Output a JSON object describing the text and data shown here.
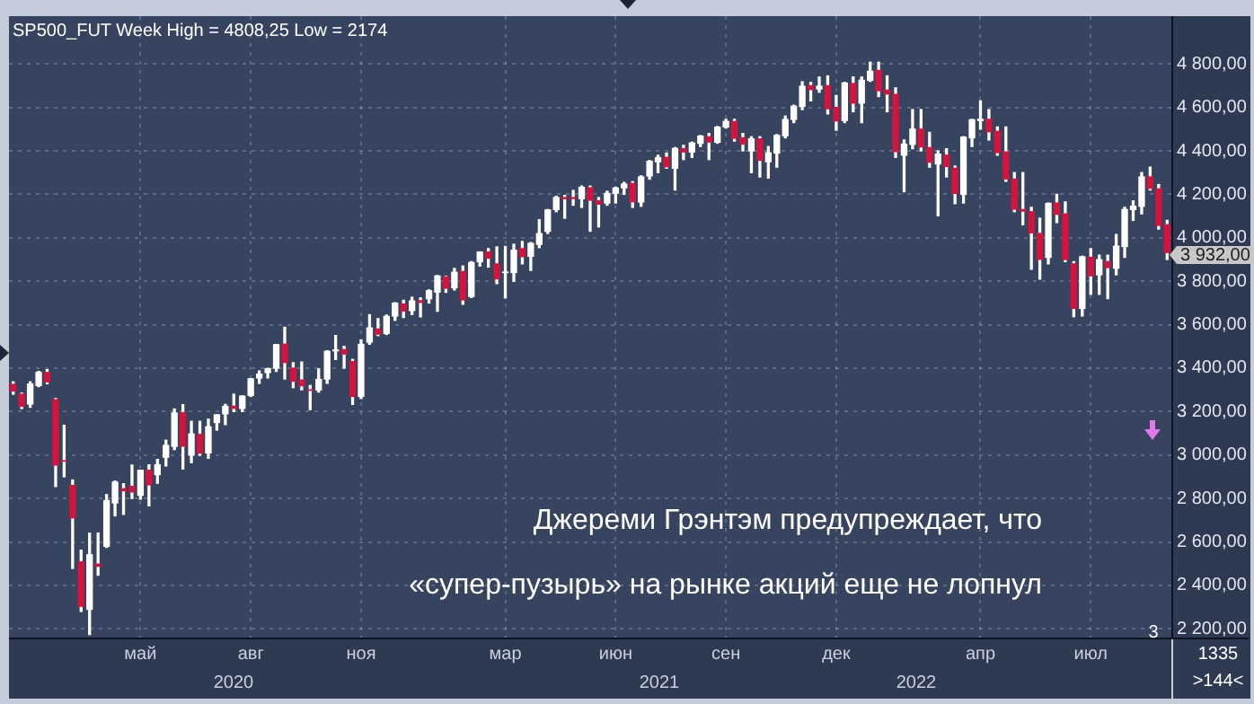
{
  "chart_data": {
    "type": "candlestick",
    "title": "SP500_FUT Week High = 4808,25 Low = 2174",
    "annotations": [
      "Джереми Грэнтэм предупреждает, что",
      "«супер-пузырь» на рынке акций еще не лопнул",
      "3 932,00",
      "2020",
      "2021",
      "2022",
      "3",
      "1335",
      ">144<"
    ],
    "categories": [
      null,
      null,
      null,
      null,
      null,
      null,
      null,
      null,
      null,
      null,
      null,
      null,
      null,
      null,
      null,
      "май",
      null,
      null,
      null,
      null,
      null,
      null,
      null,
      null,
      null,
      null,
      null,
      null,
      "авг",
      null,
      null,
      null,
      null,
      null,
      null,
      null,
      null,
      null,
      null,
      null,
      null,
      "ноя",
      null,
      null,
      null,
      null,
      null,
      null,
      null,
      null,
      null,
      null,
      null,
      null,
      null,
      null,
      null,
      null,
      "мар",
      null,
      null,
      null,
      null,
      null,
      null,
      null,
      null,
      null,
      null,
      null,
      null,
      "июн",
      null,
      null,
      null,
      null,
      null,
      null,
      null,
      null,
      null,
      null,
      null,
      null,
      "сен",
      null,
      null,
      null,
      null,
      null,
      null,
      null,
      null,
      null,
      null,
      null,
      null,
      "дек",
      null,
      null,
      null,
      null,
      null,
      null,
      null,
      null,
      null,
      null,
      null,
      null,
      null,
      null,
      null,
      null,
      "апр",
      null,
      null,
      null,
      null,
      null,
      null,
      null,
      null,
      null,
      null,
      null,
      null,
      "июл",
      null,
      null,
      null,
      null,
      null,
      null,
      null,
      null,
      null
    ],
    "ohlc": [
      [
        3325,
        3337,
        3280,
        3295
      ],
      [
        3280,
        3285,
        3214,
        3225
      ],
      [
        3235,
        3337,
        3220,
        3327
      ],
      [
        3320,
        3385,
        3315,
        3380
      ],
      [
        3380,
        3393,
        3328,
        3337
      ],
      [
        3255,
        3260,
        2855,
        2954
      ],
      [
        2974,
        3137,
        2900,
        2972
      ],
      [
        2860,
        2885,
        2478,
        2711
      ],
      [
        2508,
        2562,
        2280,
        2304
      ],
      [
        2290,
        2640,
        2174,
        2541
      ],
      [
        2498,
        2641,
        2447,
        2488
      ],
      [
        2580,
        2818,
        2575,
        2790
      ],
      [
        2780,
        2880,
        2720,
        2875
      ],
      [
        2845,
        2868,
        2727,
        2836
      ],
      [
        2856,
        2954,
        2800,
        2830
      ],
      [
        2815,
        2930,
        2797,
        2930
      ],
      [
        2930,
        2955,
        2766,
        2863
      ],
      [
        2910,
        2980,
        2870,
        2955
      ],
      [
        2990,
        3068,
        2950,
        3044
      ],
      [
        3040,
        3212,
        3025,
        3193
      ],
      [
        3195,
        3232,
        2936,
        3041
      ],
      [
        3000,
        3155,
        2965,
        3097
      ],
      [
        3095,
        3155,
        2999,
        3009
      ],
      [
        3010,
        3165,
        2985,
        3130
      ],
      [
        3150,
        3185,
        3115,
        3185
      ],
      [
        3190,
        3233,
        3140,
        3224
      ],
      [
        3225,
        3280,
        3200,
        3215
      ],
      [
        3215,
        3272,
        3200,
        3271
      ],
      [
        3275,
        3352,
        3270,
        3351
      ],
      [
        3355,
        3387,
        3330,
        3372
      ],
      [
        3380,
        3399,
        3355,
        3397
      ],
      [
        3400,
        3509,
        3385,
        3508
      ],
      [
        3510,
        3588,
        3350,
        3426
      ],
      [
        3400,
        3425,
        3310,
        3340
      ],
      [
        3345,
        3428,
        3300,
        3319
      ],
      [
        3300,
        3320,
        3209,
        3298
      ],
      [
        3300,
        3397,
        3290,
        3348
      ],
      [
        3350,
        3480,
        3330,
        3477
      ],
      [
        3480,
        3550,
        3440,
        3483
      ],
      [
        3485,
        3500,
        3400,
        3465
      ],
      [
        3430,
        3440,
        3233,
        3270
      ],
      [
        3270,
        3530,
        3260,
        3509
      ],
      [
        3520,
        3646,
        3510,
        3585
      ],
      [
        3580,
        3628,
        3550,
        3557
      ],
      [
        3560,
        3644,
        3555,
        3638
      ],
      [
        3640,
        3701,
        3620,
        3699
      ],
      [
        3695,
        3712,
        3633,
        3663
      ],
      [
        3665,
        3726,
        3647,
        3709
      ],
      [
        3710,
        3723,
        3636,
        3703
      ],
      [
        3720,
        3760,
        3700,
        3756
      ],
      [
        3750,
        3826,
        3662,
        3824
      ],
      [
        3820,
        3823,
        3749,
        3768
      ],
      [
        3770,
        3859,
        3760,
        3841
      ],
      [
        3845,
        3870,
        3694,
        3714
      ],
      [
        3730,
        3890,
        3725,
        3886
      ],
      [
        3890,
        3935,
        3870,
        3934
      ],
      [
        3935,
        3950,
        3865,
        3906
      ],
      [
        3880,
        3958,
        3789,
        3811
      ],
      [
        3840,
        3960,
        3723,
        3842
      ],
      [
        3840,
        3970,
        3800,
        3943
      ],
      [
        3950,
        3983,
        3880,
        3913
      ],
      [
        3915,
        3978,
        3850,
        3974
      ],
      [
        3970,
        4083,
        3955,
        4019
      ],
      [
        4030,
        4130,
        4020,
        4128
      ],
      [
        4130,
        4191,
        4120,
        4185
      ],
      [
        4185,
        4195,
        4090,
        4180
      ],
      [
        4185,
        4218,
        4150,
        4181
      ],
      [
        4180,
        4238,
        4140,
        4232
      ],
      [
        4230,
        4238,
        4030,
        4173
      ],
      [
        4170,
        4185,
        4050,
        4155
      ],
      [
        4160,
        4214,
        4150,
        4204
      ],
      [
        4205,
        4233,
        4160,
        4229
      ],
      [
        4230,
        4255,
        4200,
        4247
      ],
      [
        4250,
        4258,
        4140,
        4166
      ],
      [
        4165,
        4285,
        4145,
        4280
      ],
      [
        4285,
        4355,
        4270,
        4352
      ],
      [
        4350,
        4380,
        4300,
        4369
      ],
      [
        4370,
        4390,
        4320,
        4327
      ],
      [
        4320,
        4415,
        4220,
        4411
      ],
      [
        4410,
        4425,
        4360,
        4395
      ],
      [
        4395,
        4440,
        4370,
        4436
      ],
      [
        4435,
        4470,
        4420,
        4468
      ],
      [
        4465,
        4480,
        4360,
        4441
      ],
      [
        4440,
        4512,
        4435,
        4509
      ],
      [
        4510,
        4545,
        4505,
        4535
      ],
      [
        4535,
        4545,
        4445,
        4458
      ],
      [
        4460,
        4480,
        4400,
        4432
      ],
      [
        4400,
        4465,
        4300,
        4455
      ],
      [
        4455,
        4465,
        4280,
        4357
      ],
      [
        4350,
        4420,
        4275,
        4391
      ],
      [
        4390,
        4475,
        4325,
        4471
      ],
      [
        4470,
        4560,
        4460,
        4544
      ],
      [
        4545,
        4610,
        4530,
        4605
      ],
      [
        4605,
        4718,
        4590,
        4697
      ],
      [
        4700,
        4715,
        4630,
        4682
      ],
      [
        4685,
        4740,
        4670,
        4697
      ],
      [
        4700,
        4745,
        4570,
        4594
      ],
      [
        4600,
        4655,
        4495,
        4538
      ],
      [
        4540,
        4715,
        4530,
        4712
      ],
      [
        4710,
        4740,
        4580,
        4620
      ],
      [
        4620,
        4740,
        4530,
        4725
      ],
      [
        4725,
        4808,
        4720,
        4766
      ],
      [
        4770,
        4808,
        4650,
        4677
      ],
      [
        4680,
        4745,
        4580,
        4662
      ],
      [
        4660,
        4690,
        4370,
        4397
      ],
      [
        4380,
        4450,
        4212,
        4431
      ],
      [
        4430,
        4590,
        4410,
        4500
      ],
      [
        4500,
        4590,
        4400,
        4418
      ],
      [
        4415,
        4485,
        4325,
        4348
      ],
      [
        4340,
        4400,
        4101,
        4385
      ],
      [
        4380,
        4410,
        4280,
        4328
      ],
      [
        4320,
        4330,
        4157,
        4204
      ],
      [
        4200,
        4465,
        4160,
        4463
      ],
      [
        4460,
        4545,
        4420,
        4543
      ],
      [
        4540,
        4630,
        4500,
        4545
      ],
      [
        4545,
        4590,
        4450,
        4488
      ],
      [
        4490,
        4510,
        4380,
        4392
      ],
      [
        4395,
        4510,
        4260,
        4271
      ],
      [
        4270,
        4300,
        4120,
        4132
      ],
      [
        4130,
        4300,
        4060,
        4123
      ],
      [
        4120,
        4140,
        3855,
        4023
      ],
      [
        4020,
        4090,
        3810,
        3901
      ],
      [
        3910,
        4160,
        3880,
        4158
      ],
      [
        4160,
        4200,
        4070,
        4108
      ],
      [
        4110,
        4165,
        3890,
        3900
      ],
      [
        3880,
        3890,
        3637,
        3675
      ],
      [
        3675,
        3915,
        3640,
        3912
      ],
      [
        3910,
        3950,
        3740,
        3825
      ],
      [
        3830,
        3920,
        3740,
        3899
      ],
      [
        3890,
        3920,
        3720,
        3863
      ],
      [
        3860,
        4015,
        3830,
        3961
      ],
      [
        3960,
        4140,
        3910,
        4130
      ],
      [
        4130,
        4170,
        4080,
        4145
      ],
      [
        4145,
        4300,
        4110,
        4280
      ],
      [
        4280,
        4325,
        4220,
        4228
      ],
      [
        4225,
        4245,
        4040,
        4057
      ],
      [
        4060,
        4080,
        3900,
        3932
      ]
    ],
    "colors": [
      "#d4143c",
      "#d4143c",
      "#ffffff",
      "#ffffff",
      "#d4143c",
      "#d4143c",
      "#d4143c",
      "#d4143c",
      "#d4143c",
      "#ffffff",
      "#d4143c",
      "#ffffff",
      "#ffffff",
      "#d4143c",
      "#d4143c",
      "#ffffff",
      "#d4143c",
      "#ffffff",
      "#ffffff",
      "#ffffff",
      "#d4143c",
      "#ffffff",
      "#d4143c",
      "#ffffff",
      "#ffffff",
      "#ffffff",
      "#d4143c",
      "#ffffff",
      "#ffffff",
      "#ffffff",
      "#ffffff",
      "#ffffff",
      "#d4143c",
      "#d4143c",
      "#d4143c",
      "#d4143c",
      "#ffffff",
      "#ffffff",
      "#ffffff",
      "#d4143c",
      "#d4143c",
      "#ffffff",
      "#ffffff",
      "#d4143c",
      "#ffffff",
      "#ffffff",
      "#d4143c",
      "#ffffff",
      "#d4143c",
      "#ffffff",
      "#ffffff",
      "#d4143c",
      "#ffffff",
      "#d4143c",
      "#ffffff",
      "#ffffff",
      "#d4143c",
      "#d4143c",
      "#ffffff",
      "#ffffff",
      "#d4143c",
      "#ffffff",
      "#ffffff",
      "#ffffff",
      "#ffffff",
      "#d4143c",
      "#d4143c",
      "#ffffff",
      "#d4143c",
      "#d4143c",
      "#ffffff",
      "#ffffff",
      "#ffffff",
      "#d4143c",
      "#ffffff",
      "#ffffff",
      "#ffffff",
      "#d4143c",
      "#ffffff",
      "#d4143c",
      "#ffffff",
      "#ffffff",
      "#d4143c",
      "#ffffff",
      "#ffffff",
      "#d4143c",
      "#d4143c",
      "#ffffff",
      "#d4143c",
      "#ffffff",
      "#ffffff",
      "#ffffff",
      "#ffffff",
      "#ffffff",
      "#d4143c",
      "#ffffff",
      "#d4143c",
      "#d4143c",
      "#ffffff",
      "#d4143c",
      "#ffffff",
      "#ffffff",
      "#d4143c",
      "#d4143c",
      "#d4143c",
      "#ffffff",
      "#ffffff",
      "#d4143c",
      "#d4143c",
      "#ffffff",
      "#d4143c",
      "#d4143c",
      "#ffffff",
      "#ffffff",
      "#ffffff",
      "#d4143c",
      "#d4143c",
      "#d4143c",
      "#d4143c",
      "#d4143c",
      "#d4143c",
      "#d4143c",
      "#ffffff",
      "#d4143c",
      "#d4143c",
      "#d4143c",
      "#ffffff",
      "#d4143c",
      "#ffffff",
      "#d4143c",
      "#ffffff",
      "#ffffff",
      "#ffffff",
      "#ffffff",
      "#d4143c",
      "#d4143c",
      "#d4143c"
    ],
    "ylim": [
      2160,
      5020
    ],
    "yticks": [
      {
        "value": 2200,
        "label": "2 200,00"
      },
      {
        "value": 2400,
        "label": "2 400,00"
      },
      {
        "value": 2600,
        "label": "2 600,00"
      },
      {
        "value": 2800,
        "label": "2 800,00"
      },
      {
        "value": 3000,
        "label": "3 000,00"
      },
      {
        "value": 3200,
        "label": "3 200,00"
      },
      {
        "value": 3400,
        "label": "3 400,00"
      },
      {
        "value": 3600,
        "label": "3 600,00"
      },
      {
        "value": 3800,
        "label": "3 800,00"
      },
      {
        "value": 4000,
        "label": "4 000,00"
      },
      {
        "value": 4200,
        "label": "4 200,00"
      },
      {
        "value": 4400,
        "label": "4 400,00"
      },
      {
        "value": 4600,
        "label": "4 600,00"
      },
      {
        "value": 4800,
        "label": "4 800,00"
      }
    ],
    "grid": true
  }
}
